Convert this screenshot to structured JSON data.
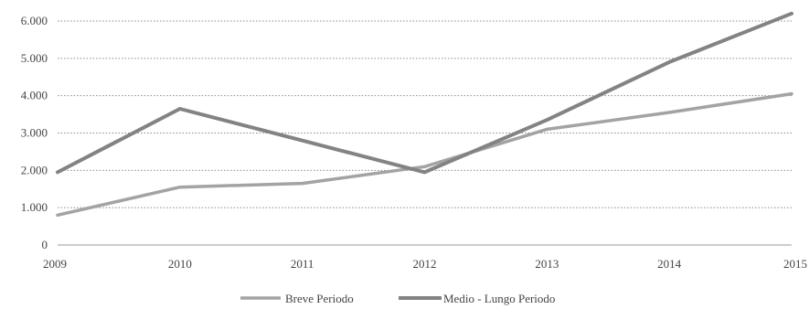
{
  "chart_data": {
    "type": "line",
    "title": "",
    "xlabel": "",
    "ylabel": "",
    "categories": [
      "2009",
      "2010",
      "2011",
      "2012",
      "2013",
      "2014",
      "2015"
    ],
    "ylim": [
      0,
      6000
    ],
    "yticks": [
      0,
      1000,
      2000,
      3000,
      4000,
      5000,
      6000
    ],
    "ytick_labels": [
      "0",
      "1.000",
      "2.000",
      "3.000",
      "4.000",
      "5.000",
      "6.000"
    ],
    "grid": true,
    "legend_position": "bottom",
    "series": [
      {
        "name": "Breve Periodo",
        "color": "#a3a3a3",
        "values": [
          800,
          1550,
          1650,
          2100,
          3100,
          3550,
          4050
        ]
      },
      {
        "name": "Medio - Lungo Periodo",
        "color": "#838383",
        "values": [
          1950,
          3650,
          2800,
          1950,
          3350,
          4900,
          6200
        ]
      }
    ]
  }
}
